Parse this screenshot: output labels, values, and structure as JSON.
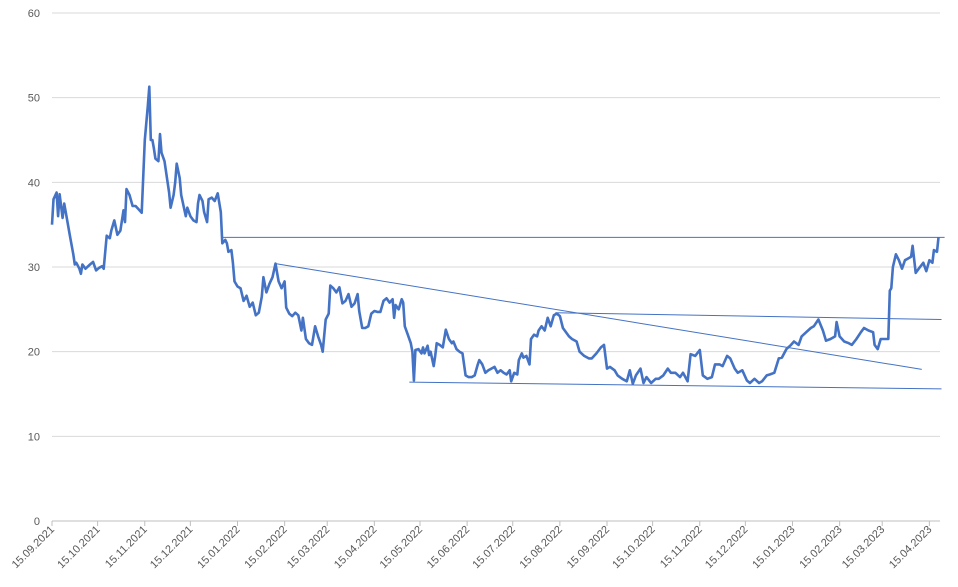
{
  "chart_data": {
    "type": "line",
    "x": [
      "15.09.2021",
      "16.09.2021",
      "18.09.2021",
      "19.09.2021",
      "20.09.2021",
      "22.09.2021",
      "23.09.2021",
      "25.09.2021",
      "27.09.2021",
      "29.09.2021",
      "30.09.2021",
      "01.10.2021",
      "03.10.2021",
      "04.10.2021",
      "05.10.2021",
      "07.10.2021",
      "10.10.2021",
      "12.10.2021",
      "14.10.2021",
      "16.10.2021",
      "18.10.2021",
      "19.10.2021",
      "21.10.2021",
      "23.10.2021",
      "24.10.2021",
      "26.10.2021",
      "28.10.2021",
      "30.10.2021",
      "01.11.2021",
      "02.11.2021",
      "03.11.2021",
      "05.11.2021",
      "07.11.2021",
      "09.11.2021",
      "11.11.2021",
      "13.11.2021",
      "15.11.2021",
      "17.11.2021",
      "18.11.2021",
      "19.11.2021",
      "20.11.2021",
      "21.11.2021",
      "22.11.2021",
      "24.11.2021",
      "25.11.2021",
      "26.11.2021",
      "28.11.2021",
      "30.11.2021",
      "01.12.2021",
      "02.12.2021",
      "04.12.2021",
      "05.12.2021",
      "06.12.2021",
      "08.12.2021",
      "09.12.2021",
      "11.12.2021",
      "12.12.2021",
      "13.12.2021",
      "15.12.2021",
      "17.12.2021",
      "19.12.2021",
      "20.12.2021",
      "21.12.2021",
      "23.12.2021",
      "24.12.2021",
      "26.12.2021",
      "27.12.2021",
      "29.12.2021",
      "31.12.2021",
      "02.01.2022",
      "04.01.2022",
      "05.01.2022",
      "07.01.2022",
      "08.01.2022",
      "09.01.2022",
      "11.01.2022",
      "12.01.2022",
      "13.01.2022",
      "15.01.2022",
      "17.01.2022",
      "19.01.2022",
      "21.01.2022",
      "23.01.2022",
      "25.01.2022",
      "27.01.2022",
      "29.01.2022",
      "31.01.2022",
      "01.02.2022",
      "03.02.2022",
      "05.02.2022",
      "07.02.2022",
      "09.02.2022",
      "11.02.2022",
      "13.02.2022",
      "15.02.2022",
      "16.02.2022",
      "18.02.2022",
      "20.02.2022",
      "22.02.2022",
      "24.02.2022",
      "26.02.2022",
      "27.02.2022",
      "01.03.2022",
      "03.03.2022",
      "05.03.2022",
      "07.03.2022",
      "09.03.2022",
      "11.03.2022",
      "12.03.2022",
      "14.03.2022",
      "16.03.2022",
      "17.03.2022",
      "19.03.2022",
      "21.03.2022",
      "23.03.2022",
      "25.03.2022",
      "27.03.2022",
      "29.03.2022",
      "31.03.2022",
      "02.04.2022",
      "04.04.2022",
      "05.04.2022",
      "07.04.2022",
      "09.04.2022",
      "11.04.2022",
      "13.04.2022",
      "15.04.2022",
      "17.04.2022",
      "19.04.2022",
      "21.04.2022",
      "23.04.2022",
      "25.04.2022",
      "27.04.2022",
      "28.04.2022",
      "29.04.2022",
      "01.05.2022",
      "03.05.2022",
      "04.05.2022",
      "05.05.2022",
      "07.05.2022",
      "09.05.2022",
      "10.05.2022",
      "11.05.2022",
      "12.05.2022",
      "14.05.2022",
      "16.05.2022",
      "17.05.2022",
      "18.05.2022",
      "20.05.2022",
      "21.05.2022",
      "22.05.2022",
      "24.05.2022",
      "25.05.2022",
      "26.05.2022",
      "28.05.2022",
      "30.05.2022",
      "01.06.2022",
      "03.06.2022",
      "05.06.2022",
      "06.06.2022",
      "08.06.2022",
      "10.06.2022",
      "12.06.2022",
      "14.06.2022",
      "16.06.2022",
      "18.06.2022",
      "20.06.2022",
      "22.06.2022",
      "23.06.2022",
      "25.06.2022",
      "27.06.2022",
      "29.06.2022",
      "01.07.2022",
      "03.07.2022",
      "05.07.2022",
      "07.07.2022",
      "09.07.2022",
      "11.07.2022",
      "13.07.2022",
      "14.07.2022",
      "16.07.2022",
      "18.07.2022",
      "19.07.2022",
      "21.07.2022",
      "22.07.2022",
      "24.07.2022",
      "26.07.2022",
      "27.07.2022",
      "29.07.2022",
      "31.07.2022",
      "01.08.2022",
      "03.08.2022",
      "05.08.2022",
      "07.08.2022",
      "09.08.2022",
      "11.08.2022",
      "13.08.2022",
      "15.08.2022",
      "17.08.2022",
      "21.08.2022",
      "23.08.2022",
      "26.08.2022",
      "28.08.2022",
      "31.08.2022",
      "03.09.2022",
      "05.09.2022",
      "08.09.2022",
      "11.09.2022",
      "13.09.2022",
      "15.09.2022",
      "17.09.2022",
      "20.09.2022",
      "22.09.2022",
      "25.09.2022",
      "28.09.2022",
      "30.09.2022",
      "02.10.2022",
      "04.10.2022",
      "07.10.2022",
      "09.10.2022",
      "11.10.2022",
      "14.10.2022",
      "17.10.2022",
      "19.10.2022",
      "22.10.2022",
      "25.10.2022",
      "27.10.2022",
      "30.10.2022",
      "02.11.2022",
      "04.11.2022",
      "07.11.2022",
      "09.11.2022",
      "12.11.2022",
      "15.11.2022",
      "17.11.2022",
      "20.11.2022",
      "23.11.2022",
      "25.11.2022",
      "28.11.2022",
      "30.11.2022",
      "03.12.2022",
      "05.12.2022",
      "08.12.2022",
      "10.12.2022",
      "13.12.2022",
      "16.12.2022",
      "18.12.2022",
      "21.12.2022",
      "24.12.2022",
      "26.12.2022",
      "29.12.2022",
      "31.12.2022",
      "03.01.2023",
      "06.01.2023",
      "08.01.2023",
      "11.01.2023",
      "14.01.2023",
      "16.01.2023",
      "19.01.2023",
      "21.01.2023",
      "24.01.2023",
      "27.01.2023",
      "29.01.2023",
      "01.02.2023",
      "04.02.2023",
      "06.02.2023",
      "09.02.2023",
      "12.02.2023",
      "13.02.2023",
      "15.02.2023",
      "18.02.2023",
      "21.02.2023",
      "23.02.2023",
      "26.02.2023",
      "01.03.2023",
      "03.03.2023",
      "06.03.2023",
      "09.03.2023",
      "10.03.2023",
      "12.03.2023",
      "14.03.2023",
      "17.03.2023",
      "19.03.2023",
      "20.03.2023",
      "21.03.2023",
      "22.03.2023",
      "24.03.2023",
      "26.03.2023",
      "28.03.2023",
      "30.03.2023",
      "01.04.2023",
      "03.04.2023",
      "04.04.2023",
      "06.04.2023",
      "08.04.2023",
      "11.04.2023",
      "13.04.2023",
      "15.04.2023",
      "17.04.2023",
      "18.04.2023",
      "20.04.2023",
      "21.04.2023"
    ],
    "values": [
      35,
      38,
      38.8,
      36,
      38.6,
      35.8,
      37.5,
      35.5,
      33.5,
      31.5,
      30.3,
      30.5,
      29.8,
      29.2,
      30.3,
      29.8,
      30.3,
      30.6,
      29.6,
      29.9,
      30.1,
      29.8,
      33.7,
      33.4,
      34.3,
      35.5,
      33.8,
      34.3,
      36.7,
      35.3,
      39.2,
      38.5,
      37.2,
      37.2,
      36.8,
      36.4,
      45,
      49,
      51.3,
      45,
      45,
      44,
      42.8,
      42.5,
      45.7,
      43.5,
      42.5,
      40,
      38.8,
      37,
      38.5,
      40,
      42.2,
      40.5,
      38.5,
      36.8,
      36,
      37,
      36,
      35.5,
      35.3,
      37.5,
      38.5,
      37.8,
      36.5,
      35.3,
      38,
      38.2,
      37.8,
      38.7,
      36.5,
      32.8,
      33.2,
      32.8,
      31.8,
      32,
      30.5,
      28.3,
      27.7,
      27.5,
      26,
      26.6,
      25.3,
      25.8,
      24.3,
      24.6,
      26.5,
      28.8,
      27,
      28,
      28.8,
      30.4,
      28.3,
      27.5,
      28.3,
      25.2,
      24.5,
      24.2,
      24.6,
      24.3,
      22.5,
      24,
      21.5,
      21,
      20.8,
      23,
      21.8,
      20.8,
      20,
      23.8,
      24.5,
      27.8,
      27.5,
      27,
      27.6,
      25.7,
      26,
      26.8,
      25.3,
      25.7,
      26.8,
      24.8,
      22.8,
      22.8,
      23,
      24.5,
      24.8,
      24.7,
      24.7,
      26,
      26.3,
      25.8,
      26.2,
      24,
      25.5,
      25,
      26.2,
      25.8,
      23,
      22,
      21,
      20,
      16.6,
      20.2,
      20.3,
      19.8,
      20.5,
      19.8,
      20.7,
      19.6,
      20,
      18.3,
      19.5,
      21,
      20.8,
      20.5,
      22.6,
      21.5,
      21,
      21.2,
      20.3,
      20,
      19.8,
      17.2,
      17,
      17,
      17.2,
      18.5,
      19,
      18.5,
      17.5,
      17.8,
      18,
      18.2,
      17.5,
      17.8,
      17.5,
      17.3,
      17.8,
      16.5,
      17.5,
      17.3,
      19,
      19.8,
      19.3,
      19.5,
      18.5,
      21.5,
      22,
      21.8,
      22.5,
      23,
      22.5,
      24,
      23,
      24.3,
      24.5,
      24.2,
      22.8,
      21.8,
      21.5,
      21.2,
      20,
      19.5,
      19.2,
      19.2,
      19.8,
      20.5,
      20.8,
      18,
      18.2,
      17.8,
      17.2,
      16.8,
      16.5,
      17.8,
      16.2,
      17.2,
      18,
      16.3,
      17,
      16.3,
      16.8,
      16.8,
      17.2,
      18,
      17.5,
      17.5,
      17,
      17.5,
      16.5,
      19.7,
      19.5,
      20.2,
      17.2,
      16.8,
      17,
      18.5,
      18.5,
      18.3,
      19.5,
      19.2,
      18,
      17.5,
      17.8,
      16.6,
      16.3,
      16.8,
      16.3,
      16.5,
      17.2,
      17.3,
      17.5,
      19.2,
      19.3,
      20.3,
      20.8,
      21.2,
      20.8,
      21.8,
      22.3,
      22.8,
      23,
      23.8,
      22.5,
      21.3,
      21.5,
      21.8,
      23.5,
      21.8,
      21.2,
      21,
      20.8,
      21.5,
      22.3,
      22.8,
      22.5,
      22.3,
      20.8,
      20.3,
      21.5,
      21.5,
      21.5,
      27.2,
      27.5,
      30,
      31.5,
      30.8,
      29.8,
      30.8,
      31,
      31.2,
      32.5,
      29.3,
      29.8,
      30.5,
      29.5,
      30.8,
      30.5,
      32,
      31.8,
      33.5
    ],
    "color": "#4472c4",
    "trendlines": [
      {
        "x": [
          "05.01.2022",
          "25.04.2023"
        ],
        "values": [
          33.5,
          33.5
        ],
        "color": "#4472c4"
      },
      {
        "x": [
          "09.02.2022",
          "10.04.2023"
        ],
        "values": [
          30.4,
          17.9
        ],
        "color": "#4472c4"
      },
      {
        "x": [
          "12.08.2022",
          "23.04.2023"
        ],
        "values": [
          24.6,
          23.8
        ],
        "color": "#4472c4"
      },
      {
        "x": [
          "08.05.2022",
          "23.04.2023"
        ],
        "values": [
          16.4,
          15.6
        ],
        "color": "#4472c4"
      }
    ],
    "xlim": [
      "15.09.2021",
      "22.04.2023"
    ],
    "xticks": [
      "15.09.2021",
      "15.10.2021",
      "15.11.2021",
      "15.12.2021",
      "15.01.2022",
      "15.02.2022",
      "15.03.2022",
      "15.04.2022",
      "15.05.2022",
      "15.06.2022",
      "15.07.2022",
      "15.08.2022",
      "15.09.2022",
      "15.10.2022",
      "15.11.2022",
      "15.12.2022",
      "15.01.2023",
      "15.02.2023",
      "15.03.2023",
      "15.04.2023"
    ],
    "ylim": [
      0,
      60
    ],
    "yticks": [
      0,
      10,
      20,
      30,
      40,
      50,
      60
    ],
    "grid": true
  }
}
